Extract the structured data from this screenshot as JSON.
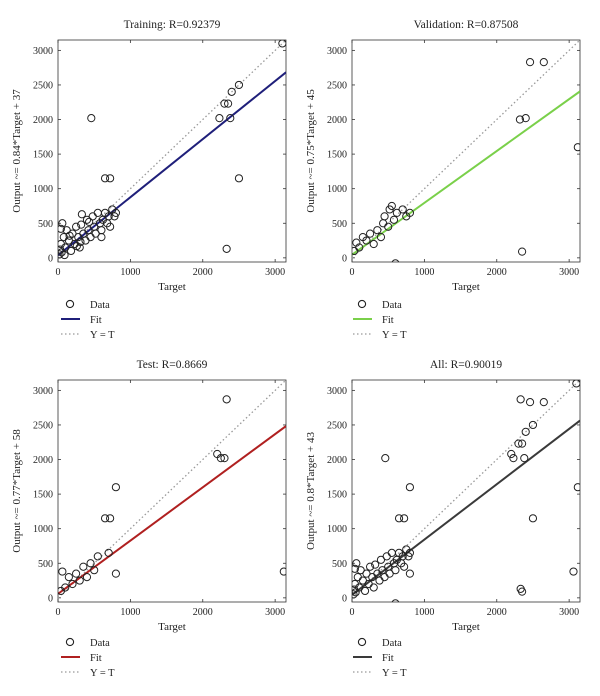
{
  "chart_data": [
    {
      "type": "scatter",
      "title": "Training: R=0.92379",
      "xlabel": "Target",
      "ylabel": "Output ~= 0.84*Target + 37",
      "xlim": [
        0,
        3150
      ],
      "ylim": [
        -60,
        3150
      ],
      "xticks": [
        0,
        1000,
        2000,
        3000
      ],
      "yticks": [
        0,
        500,
        1000,
        1500,
        2000,
        2500,
        3000
      ],
      "fit": {
        "slope": 0.84,
        "intercept": 37,
        "color": "#1f1f7a"
      },
      "legend": [
        "Data",
        "Fit",
        "Y = T"
      ],
      "points": [
        [
          20,
          50
        ],
        [
          30,
          120
        ],
        [
          40,
          200
        ],
        [
          40,
          420
        ],
        [
          50,
          80
        ],
        [
          60,
          500
        ],
        [
          80,
          300
        ],
        [
          100,
          150
        ],
        [
          120,
          400
        ],
        [
          150,
          250
        ],
        [
          180,
          100
        ],
        [
          200,
          350
        ],
        [
          230,
          200
        ],
        [
          250,
          450
        ],
        [
          280,
          300
        ],
        [
          300,
          150
        ],
        [
          320,
          480
        ],
        [
          350,
          350
        ],
        [
          380,
          250
        ],
        [
          400,
          550
        ],
        [
          420,
          400
        ],
        [
          450,
          300
        ],
        [
          480,
          600
        ],
        [
          500,
          450
        ],
        [
          520,
          350
        ],
        [
          550,
          650
        ],
        [
          580,
          500
        ],
        [
          600,
          400
        ],
        [
          620,
          550
        ],
        [
          650,
          650
        ],
        [
          680,
          500
        ],
        [
          700,
          600
        ],
        [
          720,
          450
        ],
        [
          750,
          700
        ],
        [
          780,
          600
        ],
        [
          800,
          650
        ],
        [
          330,
          630
        ],
        [
          90,
          40
        ],
        [
          160,
          320
        ],
        [
          260,
          170
        ],
        [
          430,
          520
        ],
        [
          310,
          230
        ],
        [
          600,
          300
        ],
        [
          460,
          2020
        ],
        [
          650,
          1150
        ],
        [
          720,
          1150
        ],
        [
          2230,
          2020
        ],
        [
          2300,
          2230
        ],
        [
          2350,
          2230
        ],
        [
          2380,
          2020
        ],
        [
          2500,
          2500
        ],
        [
          2400,
          2400
        ],
        [
          2500,
          1150
        ],
        [
          2330,
          130
        ],
        [
          3100,
          3100
        ]
      ]
    },
    {
      "type": "scatter",
      "title": "Validation: R=0.87508",
      "xlabel": "Target",
      "ylabel": "Output ~= 0.75*Target + 45",
      "xlim": [
        0,
        3150
      ],
      "ylim": [
        -60,
        3150
      ],
      "xticks": [
        0,
        1000,
        2000,
        3000
      ],
      "yticks": [
        0,
        500,
        1000,
        1500,
        2000,
        2500,
        3000
      ],
      "fit": {
        "slope": 0.75,
        "intercept": 45,
        "color": "#7ad04a"
      },
      "legend": [
        "Data",
        "Fit",
        "Y = T"
      ],
      "points": [
        [
          30,
          100
        ],
        [
          60,
          220
        ],
        [
          100,
          150
        ],
        [
          150,
          300
        ],
        [
          200,
          250
        ],
        [
          250,
          350
        ],
        [
          300,
          200
        ],
        [
          350,
          400
        ],
        [
          400,
          300
        ],
        [
          430,
          500
        ],
        [
          450,
          600
        ],
        [
          500,
          450
        ],
        [
          520,
          700
        ],
        [
          550,
          750
        ],
        [
          580,
          550
        ],
        [
          620,
          650
        ],
        [
          700,
          700
        ],
        [
          750,
          600
        ],
        [
          800,
          650
        ],
        [
          600,
          -80
        ],
        [
          2320,
          2000
        ],
        [
          2400,
          2020
        ],
        [
          2460,
          2830
        ],
        [
          2650,
          2830
        ],
        [
          2350,
          90
        ],
        [
          3120,
          1600
        ]
      ]
    },
    {
      "type": "scatter",
      "title": "Test: R=0.8669",
      "xlabel": "Target",
      "ylabel": "Output ~= 0.77*Target + 58",
      "xlim": [
        0,
        3150
      ],
      "ylim": [
        -60,
        3150
      ],
      "xticks": [
        0,
        1000,
        2000,
        3000
      ],
      "yticks": [
        0,
        500,
        1000,
        1500,
        2000,
        2500,
        3000
      ],
      "fit": {
        "slope": 0.77,
        "intercept": 58,
        "color": "#b02020"
      },
      "legend": [
        "Data",
        "Fit",
        "Y = T"
      ],
      "points": [
        [
          40,
          100
        ],
        [
          60,
          380
        ],
        [
          100,
          150
        ],
        [
          150,
          300
        ],
        [
          200,
          200
        ],
        [
          250,
          350
        ],
        [
          300,
          250
        ],
        [
          350,
          450
        ],
        [
          400,
          300
        ],
        [
          450,
          500
        ],
        [
          500,
          400
        ],
        [
          550,
          600
        ],
        [
          700,
          650
        ],
        [
          650,
          1150
        ],
        [
          720,
          1150
        ],
        [
          800,
          1600
        ],
        [
          800,
          350
        ],
        [
          2200,
          2080
        ],
        [
          2250,
          2020
        ],
        [
          2300,
          2020
        ],
        [
          2330,
          2870
        ],
        [
          3120,
          380
        ]
      ]
    },
    {
      "type": "scatter",
      "title": "All: R=0.90019",
      "xlabel": "Target",
      "ylabel": "Output ~= 0.8*Target + 43",
      "xlim": [
        0,
        3150
      ],
      "ylim": [
        -60,
        3150
      ],
      "xticks": [
        0,
        1000,
        2000,
        3000
      ],
      "yticks": [
        0,
        500,
        1000,
        1500,
        2000,
        2500,
        3000
      ],
      "fit": {
        "slope": 0.8,
        "intercept": 43,
        "color": "#3a3a3a"
      },
      "legend": [
        "Data",
        "Fit",
        "Y = T"
      ],
      "points": [
        [
          20,
          50
        ],
        [
          30,
          120
        ],
        [
          40,
          200
        ],
        [
          40,
          420
        ],
        [
          50,
          80
        ],
        [
          60,
          500
        ],
        [
          80,
          300
        ],
        [
          100,
          150
        ],
        [
          120,
          400
        ],
        [
          150,
          250
        ],
        [
          180,
          100
        ],
        [
          200,
          350
        ],
        [
          230,
          200
        ],
        [
          250,
          450
        ],
        [
          280,
          300
        ],
        [
          300,
          150
        ],
        [
          320,
          480
        ],
        [
          350,
          350
        ],
        [
          380,
          250
        ],
        [
          400,
          550
        ],
        [
          420,
          400
        ],
        [
          450,
          300
        ],
        [
          480,
          600
        ],
        [
          500,
          450
        ],
        [
          520,
          350
        ],
        [
          550,
          650
        ],
        [
          580,
          500
        ],
        [
          600,
          400
        ],
        [
          620,
          550
        ],
        [
          650,
          650
        ],
        [
          680,
          500
        ],
        [
          700,
          600
        ],
        [
          720,
          450
        ],
        [
          750,
          700
        ],
        [
          780,
          600
        ],
        [
          800,
          650
        ],
        [
          600,
          -80
        ],
        [
          460,
          2020
        ],
        [
          650,
          1150
        ],
        [
          720,
          1150
        ],
        [
          800,
          1600
        ],
        [
          800,
          350
        ],
        [
          2200,
          2080
        ],
        [
          2230,
          2020
        ],
        [
          2300,
          2230
        ],
        [
          2350,
          2230
        ],
        [
          2380,
          2020
        ],
        [
          2400,
          2400
        ],
        [
          2500,
          2500
        ],
        [
          2330,
          2870
        ],
        [
          2460,
          2830
        ],
        [
          2650,
          2830
        ],
        [
          2500,
          1150
        ],
        [
          2330,
          130
        ],
        [
          2350,
          90
        ],
        [
          3100,
          3100
        ],
        [
          3120,
          1600
        ],
        [
          3060,
          380
        ]
      ]
    }
  ]
}
